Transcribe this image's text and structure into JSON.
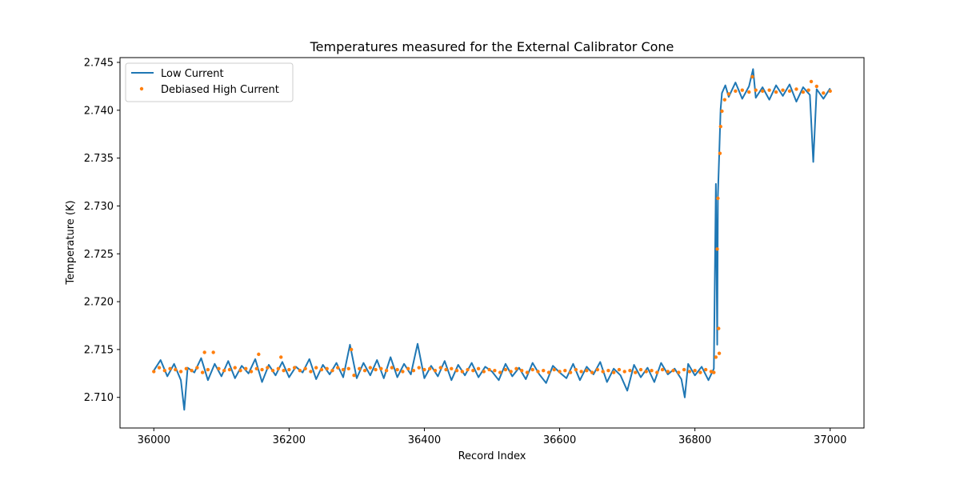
{
  "chart_data": {
    "type": "line",
    "title": "Temperatures measured for the External Calibrator Cone",
    "xlabel": "Record Index",
    "ylabel": "Temperature (K)",
    "xlim": [
      35950,
      37050
    ],
    "ylim": [
      2.7068,
      2.7455
    ],
    "xticks": [
      36000,
      36200,
      36400,
      36600,
      36800,
      37000
    ],
    "yticks": [
      2.71,
      2.715,
      2.72,
      2.725,
      2.73,
      2.735,
      2.74,
      2.745
    ],
    "ytick_labels": [
      "2.710",
      "2.715",
      "2.720",
      "2.725",
      "2.730",
      "2.735",
      "2.740",
      "2.745"
    ],
    "grid": false,
    "legend_position": "upper-left",
    "series": [
      {
        "name": "Low Current",
        "kind": "line",
        "color": "#1f77b4",
        "x": [
          36000,
          36010,
          36020,
          36030,
          36040,
          36045,
          36050,
          36060,
          36070,
          36080,
          36090,
          36100,
          36110,
          36120,
          36130,
          36140,
          36150,
          36160,
          36170,
          36180,
          36190,
          36200,
          36210,
          36220,
          36230,
          36240,
          36250,
          36260,
          36270,
          36280,
          36290,
          36300,
          36310,
          36320,
          36330,
          36340,
          36350,
          36360,
          36370,
          36380,
          36390,
          36400,
          36410,
          36420,
          36430,
          36440,
          36450,
          36460,
          36470,
          36480,
          36490,
          36500,
          36510,
          36520,
          36530,
          36540,
          36550,
          36560,
          36570,
          36580,
          36590,
          36600,
          36610,
          36620,
          36630,
          36640,
          36650,
          36660,
          36670,
          36680,
          36690,
          36700,
          36710,
          36720,
          36730,
          36740,
          36750,
          36760,
          36770,
          36780,
          36785,
          36790,
          36800,
          36810,
          36820,
          36828,
          36831,
          36833,
          36834,
          36836,
          36838,
          36840,
          36845,
          36850,
          36860,
          36870,
          36880,
          36886,
          36890,
          36900,
          36910,
          36920,
          36930,
          36940,
          36950,
          36960,
          36970,
          36975,
          36980,
          36990,
          37000
        ],
        "y": [
          2.7128,
          2.7139,
          2.7122,
          2.7135,
          2.7118,
          2.7087,
          2.7131,
          2.7126,
          2.7141,
          2.7118,
          2.7135,
          2.7122,
          2.7138,
          2.712,
          2.7133,
          2.7125,
          2.714,
          2.7116,
          2.7134,
          2.7123,
          2.7137,
          2.7121,
          2.7132,
          2.7126,
          2.714,
          2.7119,
          2.7134,
          2.7124,
          2.7136,
          2.7121,
          2.7155,
          2.712,
          2.7136,
          2.7123,
          2.7139,
          2.712,
          2.7142,
          2.7121,
          2.7135,
          2.7124,
          2.7156,
          2.712,
          2.7133,
          2.7122,
          2.7138,
          2.7118,
          2.7134,
          2.7123,
          2.7136,
          2.7121,
          2.7132,
          2.7127,
          2.7118,
          2.7135,
          2.7122,
          2.7131,
          2.7119,
          2.7136,
          2.7124,
          2.7115,
          2.7133,
          2.7126,
          2.712,
          2.7135,
          2.7118,
          2.7132,
          2.7124,
          2.7137,
          2.7116,
          2.713,
          2.7123,
          2.7107,
          2.7134,
          2.7121,
          2.7131,
          2.7116,
          2.7136,
          2.7124,
          2.713,
          2.7119,
          2.71,
          2.7135,
          2.7123,
          2.7132,
          2.7118,
          2.713,
          2.7323,
          2.7155,
          2.7311,
          2.7355,
          2.7401,
          2.7418,
          2.7426,
          2.7414,
          2.7429,
          2.7412,
          2.7425,
          2.7443,
          2.7413,
          2.7424,
          2.7411,
          2.7426,
          2.7415,
          2.7427,
          2.7409,
          2.7424,
          2.7416,
          2.7346,
          2.7422,
          2.7412,
          2.7423
        ]
      },
      {
        "name": "Debiased High Current",
        "kind": "scatter",
        "color": "#ff7f0e",
        "x": [
          36000,
          36008,
          36016,
          36024,
          36032,
          36040,
          36048,
          36056,
          36064,
          36072,
          36075,
          36080,
          36088,
          36096,
          36104,
          36112,
          36120,
          36128,
          36136,
          36144,
          36152,
          36155,
          36160,
          36168,
          36176,
          36184,
          36188,
          36192,
          36200,
          36208,
          36216,
          36224,
          36232,
          36240,
          36248,
          36256,
          36264,
          36272,
          36280,
          36288,
          36292,
          36296,
          36304,
          36312,
          36320,
          36328,
          36336,
          36344,
          36352,
          36360,
          36368,
          36376,
          36384,
          36392,
          36400,
          36408,
          36416,
          36424,
          36432,
          36440,
          36448,
          36456,
          36464,
          36472,
          36480,
          36488,
          36496,
          36504,
          36512,
          36520,
          36528,
          36536,
          36544,
          36552,
          36560,
          36568,
          36576,
          36584,
          36592,
          36600,
          36608,
          36616,
          36624,
          36632,
          36640,
          36648,
          36656,
          36664,
          36672,
          36680,
          36688,
          36696,
          36704,
          36712,
          36720,
          36728,
          36736,
          36744,
          36752,
          36760,
          36768,
          36776,
          36784,
          36792,
          36800,
          36808,
          36816,
          36824,
          36828,
          36831,
          36833,
          36834,
          36835,
          36836,
          36837,
          36838,
          36840,
          36844,
          36850,
          36860,
          36870,
          36880,
          36885,
          36890,
          36900,
          36910,
          36920,
          36930,
          36940,
          36950,
          36960,
          36968,
          36972,
          36980,
          36990,
          37000
        ],
        "y": [
          2.7127,
          2.7131,
          2.7128,
          2.713,
          2.7129,
          2.7127,
          2.713,
          2.7128,
          2.7131,
          2.7126,
          2.7147,
          2.7129,
          2.7147,
          2.713,
          2.7128,
          2.7129,
          2.7131,
          2.7128,
          2.713,
          2.7127,
          2.713,
          2.7145,
          2.7129,
          2.7131,
          2.7128,
          2.713,
          2.7142,
          2.7128,
          2.7129,
          2.7131,
          2.7128,
          2.713,
          2.7127,
          2.7131,
          2.7129,
          2.713,
          2.7128,
          2.7131,
          2.7129,
          2.713,
          2.715,
          2.7123,
          2.713,
          2.7128,
          2.7131,
          2.7129,
          2.713,
          2.7128,
          2.7131,
          2.7129,
          2.7127,
          2.713,
          2.7128,
          2.7131,
          2.7129,
          2.713,
          2.7128,
          2.7131,
          2.7129,
          2.713,
          2.7128,
          2.7127,
          2.7129,
          2.7128,
          2.713,
          2.7127,
          2.7129,
          2.7128,
          2.7126,
          2.7129,
          2.7127,
          2.713,
          2.7128,
          2.7126,
          2.7129,
          2.7127,
          2.7128,
          2.7126,
          2.7129,
          2.7127,
          2.7128,
          2.7126,
          2.7129,
          2.7127,
          2.7128,
          2.7126,
          2.7129,
          2.7127,
          2.7128,
          2.7126,
          2.7129,
          2.7127,
          2.7128,
          2.7126,
          2.7129,
          2.7127,
          2.7128,
          2.7126,
          2.7129,
          2.7127,
          2.7128,
          2.7126,
          2.7129,
          2.7127,
          2.7128,
          2.7126,
          2.7129,
          2.7127,
          2.7126,
          2.7142,
          2.7255,
          2.7308,
          2.7172,
          2.7146,
          2.7355,
          2.7383,
          2.7399,
          2.7411,
          2.7417,
          2.742,
          2.7421,
          2.7419,
          2.7435,
          2.7421,
          2.742,
          2.7421,
          2.7419,
          2.7421,
          2.742,
          2.7422,
          2.7419,
          2.7421,
          2.743,
          2.7425,
          2.7418,
          2.742
        ]
      }
    ]
  }
}
